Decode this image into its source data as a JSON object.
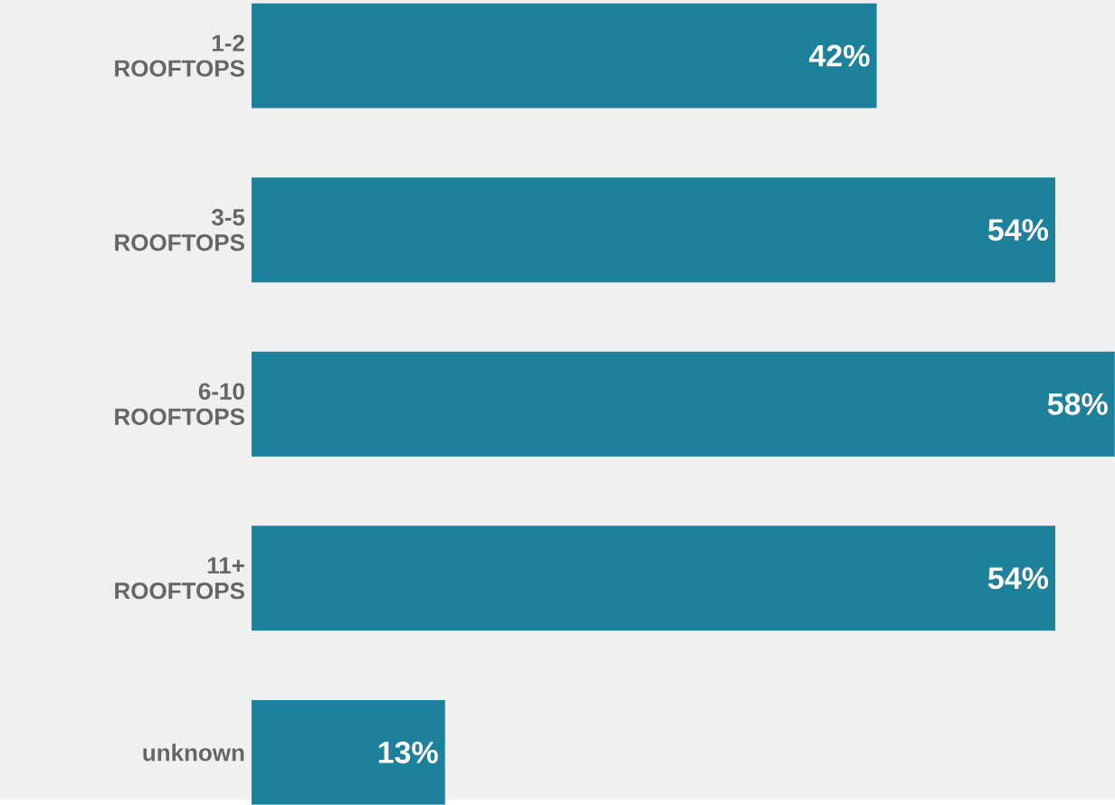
{
  "chart_data": {
    "type": "bar",
    "orientation": "horizontal",
    "categories": [
      "1-2 ROOFTOPS",
      "3-5 ROOFTOPS",
      "6-10 ROOFTOPS",
      "11+ ROOFTOPS",
      "unknown"
    ],
    "values": [
      42,
      54,
      58,
      54,
      13
    ],
    "value_labels": [
      "42%",
      "54%",
      "58%",
      "54%",
      "13%"
    ],
    "color": "#1e819c"
  }
}
